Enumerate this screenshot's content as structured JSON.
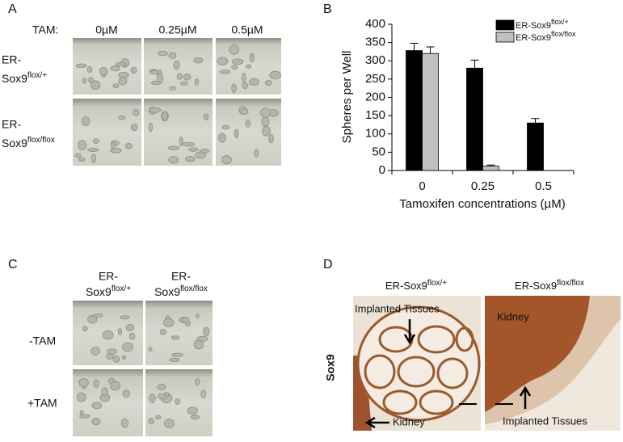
{
  "panel_labels": [
    "A",
    "B",
    "C",
    "D"
  ],
  "panel_a": {
    "tam_label": "TAM:",
    "columns": [
      "0µM",
      "0.25µM",
      "0.5µM"
    ],
    "rows": [
      {
        "line1": "ER-",
        "base": "Sox9",
        "sup": "flox/+"
      },
      {
        "line1": "ER-",
        "base": "Sox9",
        "sup": "flox/flox"
      }
    ]
  },
  "chart_data": {
    "type": "bar",
    "x_label": "Tamoxifen concentrations (µM)",
    "y_label": "Spheres per Well",
    "categories": [
      "0",
      "0.25",
      "0.5"
    ],
    "series": [
      {
        "name": "ER-Sox9",
        "name_sup": "flox/+",
        "color": "#000000",
        "values": [
          328,
          280,
          130
        ],
        "errors": [
          20,
          22,
          12
        ]
      },
      {
        "name": "ER-Sox9",
        "name_sup": "flox/flox",
        "color": "#c0c0c0",
        "values": [
          320,
          12,
          0
        ],
        "errors": [
          18,
          3,
          null
        ]
      }
    ],
    "ylim": [
      0,
      400
    ],
    "yticks": [
      0,
      50,
      100,
      150,
      200,
      250,
      300,
      350,
      400
    ],
    "legend": "upper right"
  },
  "panel_c": {
    "columns": [
      {
        "line1": "ER-",
        "base": "Sox9",
        "sup": "flox/+"
      },
      {
        "line1": "ER-",
        "base": "Sox9",
        "sup": "flox/flox"
      }
    ],
    "rows": [
      "-TAM",
      "+TAM"
    ]
  },
  "panel_d": {
    "columns": [
      {
        "base": "ER-Sox9",
        "sup": "flox/+"
      },
      {
        "base": "ER-Sox9",
        "sup": "flox/flox"
      }
    ],
    "row_label": "Sox9",
    "annotations": [
      "Implanted Tissues",
      "Kidney",
      "Kidney",
      "Implanted Tissues"
    ]
  }
}
